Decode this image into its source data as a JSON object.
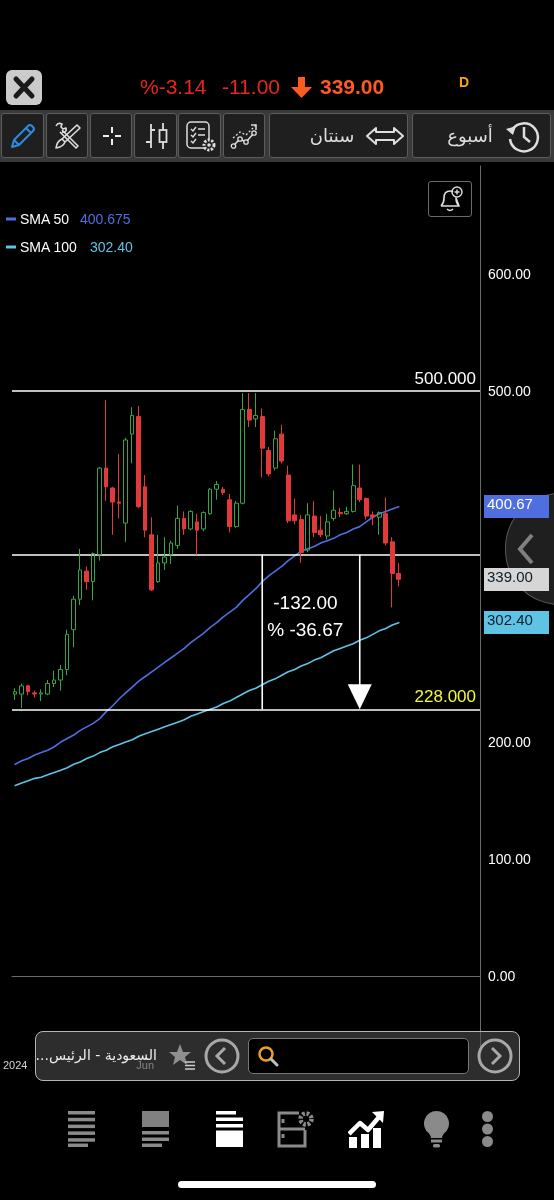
{
  "chart_data": {
    "type": "candlestick",
    "categories": [
      "2024",
      null,
      null,
      null,
      null,
      null,
      null,
      null,
      null,
      null,
      null,
      null,
      null,
      null,
      null,
      null,
      null,
      null,
      null,
      null,
      "Jun",
      null,
      null,
      null,
      null,
      null,
      null,
      null,
      null,
      null,
      null,
      null,
      null,
      null,
      null,
      null,
      null,
      null,
      null,
      null,
      null,
      null,
      null,
      null,
      null,
      null,
      null,
      null,
      null,
      null,
      null,
      null,
      null,
      null,
      null,
      null,
      null,
      null,
      null,
      null
    ],
    "series": [
      {
        "ohlc": [
          [
            241,
            246,
            236,
            243
          ],
          [
            241,
            250,
            229,
            248
          ],
          [
            248,
            249,
            240,
            243
          ],
          [
            242,
            244,
            238,
            241
          ],
          [
            241,
            245,
            235,
            242
          ],
          [
            241,
            253,
            240,
            250
          ],
          [
            250,
            261,
            247,
            253
          ],
          [
            253,
            266,
            244,
            262
          ],
          [
            262,
            296,
            257,
            292
          ],
          [
            296,
            325,
            281,
            322
          ],
          [
            322,
            365,
            317,
            347
          ],
          [
            346,
            350,
            330,
            337
          ],
          [
            337,
            362,
            321,
            361
          ],
          [
            360,
            435,
            355,
            434
          ],
          [
            434,
            492,
            406,
            418
          ],
          [
            417,
            418,
            377,
            405
          ],
          [
            405,
            446,
            391,
            404
          ],
          [
            387,
            460,
            371,
            458
          ],
          [
            463,
            486,
            438,
            479
          ],
          [
            478,
            487,
            400,
            401
          ],
          [
            418,
            428,
            375,
            381
          ],
          [
            377,
            392,
            329,
            330
          ],
          [
            337,
            377,
            336,
            353
          ],
          [
            353,
            375,
            347,
            358
          ],
          [
            360,
            372,
            352,
            370
          ],
          [
            368,
            402,
            365,
            391
          ],
          [
            391,
            397,
            377,
            382
          ],
          [
            382,
            398,
            381,
            397
          ],
          [
            388,
            395,
            360,
            381
          ],
          [
            382,
            397,
            380,
            396
          ],
          [
            395,
            417,
            394,
            416
          ],
          [
            416,
            423,
            407,
            420
          ],
          [
            416,
            418,
            411,
            413
          ],
          [
            407,
            412,
            379,
            384
          ],
          [
            384,
            406,
            383,
            404
          ],
          [
            404,
            498,
            403,
            484
          ],
          [
            484,
            498,
            469,
            475
          ],
          [
            476,
            498,
            469,
            479
          ],
          [
            478,
            485,
            426,
            451
          ],
          [
            449,
            452,
            427,
            429
          ],
          [
            434,
            466,
            432,
            459
          ],
          [
            463,
            471,
            438,
            440
          ],
          [
            428,
            436,
            387,
            389
          ],
          [
            394,
            408,
            386,
            389
          ],
          [
            390,
            394,
            353,
            362
          ],
          [
            364,
            404,
            362,
            394
          ],
          [
            393,
            406,
            375,
            379
          ],
          [
            381,
            393,
            375,
            377
          ],
          [
            376,
            395,
            373,
            388
          ],
          [
            391,
            415,
            389,
            398
          ],
          [
            396,
            400,
            392,
            395
          ],
          [
            395,
            401,
            394,
            397
          ],
          [
            397,
            437,
            396,
            419
          ],
          [
            417,
            437,
            405,
            407
          ],
          [
            408,
            409,
            390,
            393
          ],
          [
            394,
            397,
            385,
            392
          ],
          [
            392,
            397,
            377,
            396
          ],
          [
            395,
            409,
            368,
            370
          ],
          [
            371,
            375,
            315,
            344
          ],
          [
            344,
            353,
            333,
            339
          ]
        ],
        "colors": [
          "#37a447",
          "#37a447",
          "#e23a3a",
          "#e23a3a",
          "#37a447",
          "#37a447",
          "#37a447",
          "#37a447",
          "#37a447",
          "#37a447",
          "#37a447",
          "#e23a3a",
          "#37a447",
          "#37a447",
          "#e23a3a",
          "#e23a3a",
          "#e23a3a",
          "#37a447",
          "#37a447",
          "#e23a3a",
          "#e23a3a",
          "#e23a3a",
          "#37a447",
          "#37a447",
          "#37a447",
          "#37a447",
          "#e23a3a",
          "#37a447",
          "#e23a3a",
          "#37a447",
          "#37a447",
          "#37a447",
          "#e23a3a",
          "#e23a3a",
          "#37a447",
          "#37a447",
          "#e23a3a",
          "#37a447",
          "#e23a3a",
          "#e23a3a",
          "#37a447",
          "#e23a3a",
          "#e23a3a",
          "#e23a3a",
          "#e23a3a",
          "#37a447",
          "#e23a3a",
          "#e23a3a",
          "#37a447",
          "#37a447",
          "#e23a3a",
          "#37a447",
          "#37a447",
          "#e23a3a",
          "#e23a3a",
          "#e23a3a",
          "#37a447",
          "#e23a3a",
          "#e23a3a",
          "#e23a3a"
        ]
      },
      {
        "type": "line",
        "name": "SMA 50",
        "color": "#4f6fdf",
        "values": [
          181,
          184,
          186,
          189,
          191,
          193,
          196,
          200,
          203,
          206,
          210,
          213,
          216,
          220,
          226,
          231,
          237,
          242,
          247,
          252,
          256,
          260,
          264,
          268,
          272,
          276,
          280,
          285,
          289,
          293,
          298,
          302,
          307,
          311,
          315,
          321,
          326,
          331,
          337,
          342,
          346,
          350,
          355,
          359,
          363,
          365,
          367,
          370,
          372,
          374,
          377,
          379,
          382,
          384,
          388,
          392,
          395,
          397,
          399,
          401
        ]
      },
      {
        "type": "line",
        "name": "SMA 100",
        "color": "#5fc3e6",
        "values": [
          163,
          165,
          167,
          169,
          170,
          172,
          174,
          176,
          178,
          181,
          183,
          186,
          188,
          191,
          193,
          196,
          198,
          200,
          202,
          205,
          207,
          209,
          211,
          213,
          215,
          217,
          219,
          222,
          224,
          226,
          228,
          230,
          233,
          235,
          238,
          241,
          244,
          246,
          249,
          252,
          254,
          257,
          260,
          262,
          265,
          267,
          270,
          272,
          275,
          278,
          280,
          282,
          284,
          287,
          289,
          292,
          295,
          297,
          300,
          302
        ]
      }
    ],
    "ylim": [
      -63,
      692
    ],
    "yticks": [
      {
        "value": 0,
        "label": "0.00"
      },
      {
        "value": 100,
        "label": "100.00"
      },
      {
        "value": 200,
        "label": "200.00"
      },
      {
        "value": 500,
        "label": "500.00"
      },
      {
        "value": 600,
        "label": "600.00"
      }
    ],
    "legend": "top left",
    "ref_lines": [
      {
        "axis": "y",
        "value": 500,
        "label": "500.000",
        "color": "#ffffff"
      },
      {
        "axis": "y",
        "value": 360,
        "color": "#ffffff"
      },
      {
        "axis": "y",
        "value": 228,
        "label": "228.000",
        "color": "#ffffff"
      }
    ],
    "annotations": [
      "D",
      "339.00",
      "-11.00",
      "%-3.14",
      "أسبوع",
      "سنتان",
      "400.675",
      "302.40",
      "400.67",
      "339.00",
      "302.40",
      "-132.00",
      "% -36.67",
      "السعودية - الرئيس..."
    ]
  }
}
